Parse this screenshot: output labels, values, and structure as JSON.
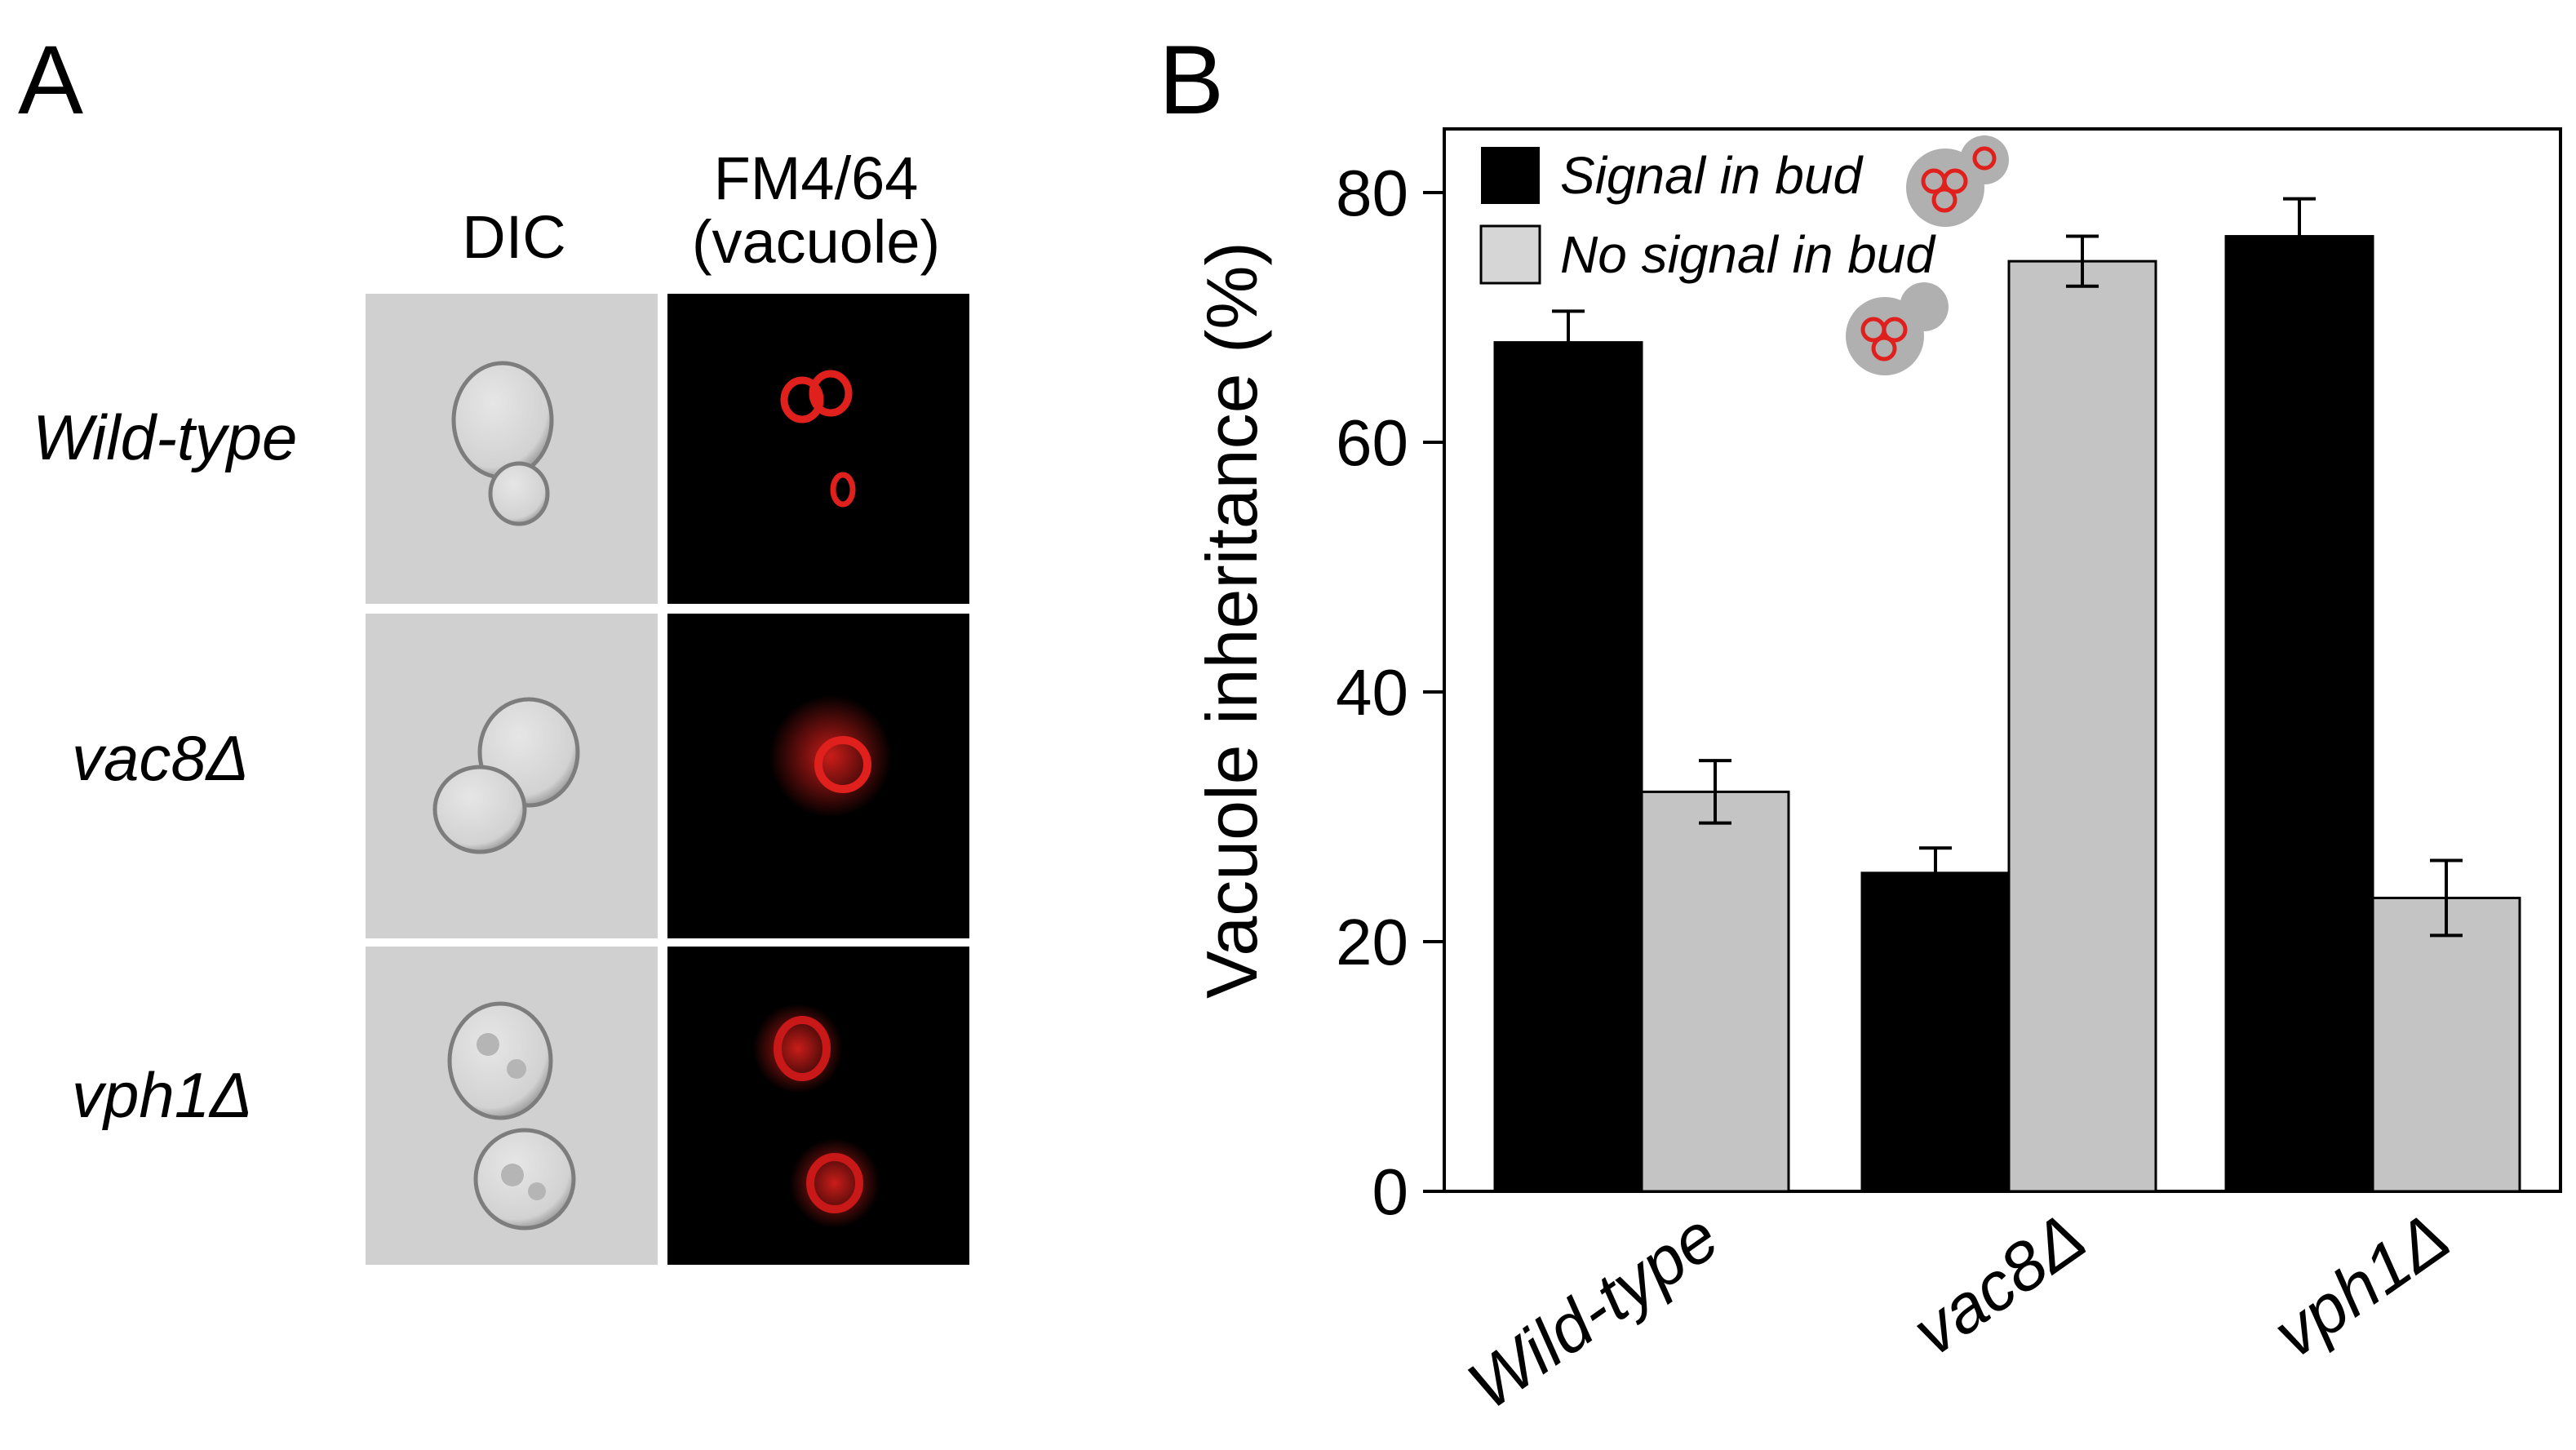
{
  "panel_a": {
    "letter": "A",
    "col_dic": "DIC",
    "col_fm_line1": "FM4/64",
    "col_fm_line2": "(vacuole)",
    "rows": [
      "Wild-type",
      "vac8Δ",
      "vph1Δ"
    ]
  },
  "panel_b": {
    "letter": "B"
  },
  "colors": {
    "signal": "#000000",
    "no_signal": "#c4c4c4",
    "vacuole_red": "#e0201c",
    "cell_gray": "#a8a8a8"
  },
  "chart_data": {
    "type": "bar",
    "categories": [
      "Wild-type",
      "vac8Δ",
      "vph1Δ"
    ],
    "series": [
      {
        "name": "Signal in bud",
        "values": [
          68,
          25.5,
          76.5
        ],
        "errors": [
          2.5,
          2,
          3
        ]
      },
      {
        "name": "No signal in bud",
        "values": [
          32,
          74.5,
          23.5
        ],
        "errors": [
          2.5,
          2,
          3
        ]
      }
    ],
    "ylabel": "Vacuole inheritance (%)",
    "xlabel": "",
    "ylim": [
      0,
      80
    ],
    "yticks": [
      0,
      20,
      40,
      60,
      80
    ],
    "legend_position": "top-left",
    "grid": false
  }
}
